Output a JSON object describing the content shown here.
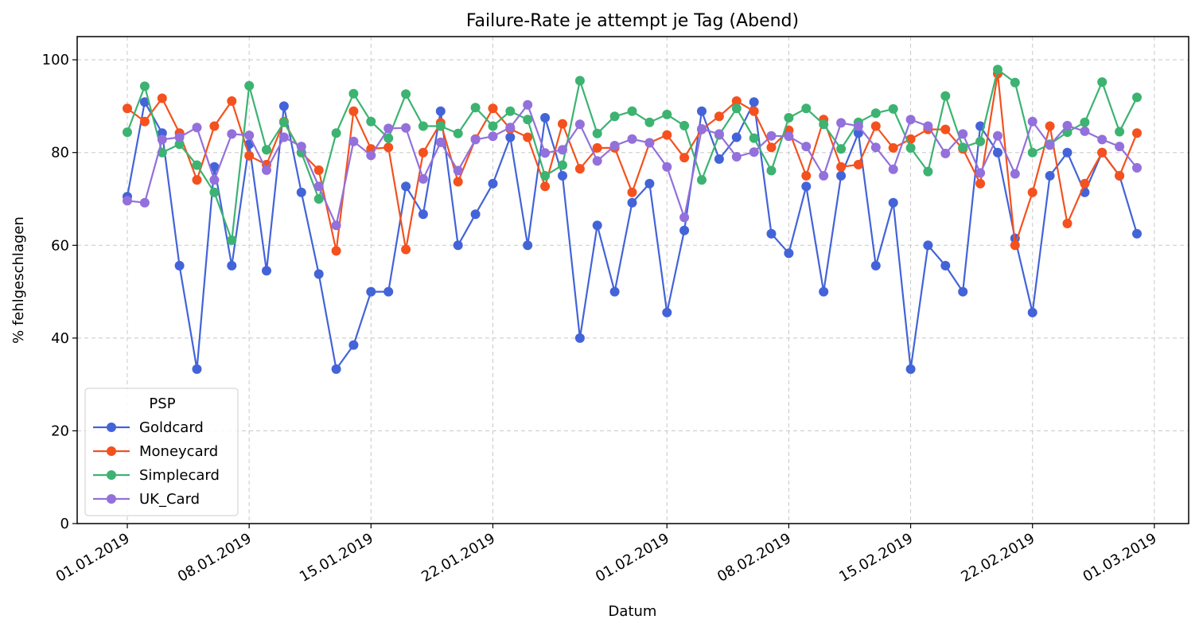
{
  "chart_data": {
    "type": "line",
    "title": "Failure-Rate je attempt je Tag (Abend)",
    "xlabel": "Datum",
    "ylabel": "% fehlgeschlagen",
    "ylim": [
      0,
      105
    ],
    "yticks": [
      0,
      20,
      40,
      60,
      80,
      100
    ],
    "xticks": [
      "01.01.2019",
      "08.01.2019",
      "15.01.2019",
      "22.01.2019",
      "01.02.2019",
      "08.02.2019",
      "15.02.2019",
      "22.02.2019",
      "01.03.2019"
    ],
    "grid": true,
    "legend": {
      "title": "PSP",
      "position": "lower-left"
    },
    "dates": [
      "01.01.2019",
      "02.01.2019",
      "03.01.2019",
      "04.01.2019",
      "05.01.2019",
      "06.01.2019",
      "07.01.2019",
      "08.01.2019",
      "09.01.2019",
      "10.01.2019",
      "11.01.2019",
      "12.01.2019",
      "13.01.2019",
      "14.01.2019",
      "15.01.2019",
      "16.01.2019",
      "17.01.2019",
      "18.01.2019",
      "19.01.2019",
      "20.01.2019",
      "21.01.2019",
      "22.01.2019",
      "23.01.2019",
      "24.01.2019",
      "25.01.2019",
      "26.01.2019",
      "27.01.2019",
      "28.01.2019",
      "29.01.2019",
      "30.01.2019",
      "31.01.2019",
      "01.02.2019",
      "02.02.2019",
      "03.02.2019",
      "04.02.2019",
      "05.02.2019",
      "06.02.2019",
      "07.02.2019",
      "08.02.2019",
      "09.02.2019",
      "10.02.2019",
      "11.02.2019",
      "12.02.2019",
      "13.02.2019",
      "14.02.2019",
      "15.02.2019",
      "16.02.2019",
      "17.02.2019",
      "18.02.2019",
      "19.02.2019",
      "20.02.2019",
      "21.02.2019",
      "22.02.2019",
      "23.02.2019",
      "24.02.2019",
      "25.02.2019",
      "26.02.2019",
      "27.02.2019",
      "28.02.2019"
    ],
    "series": [
      {
        "name": "Goldcard",
        "color": "#4363d8",
        "values": [
          70.5,
          90.9,
          84.2,
          55.6,
          33.3,
          76.9,
          55.6,
          81.8,
          54.5,
          90.0,
          71.4,
          53.8,
          33.3,
          38.5,
          50.0,
          50.0,
          72.7,
          66.7,
          88.9,
          60.0,
          66.7,
          73.3,
          83.3,
          60.0,
          87.5,
          75.0,
          40.0,
          64.3,
          50.0,
          69.2,
          73.3,
          45.5,
          63.2,
          88.9,
          78.6,
          83.3,
          90.9,
          62.5,
          58.3,
          72.7,
          50.0,
          75.0,
          84.2,
          55.6,
          69.2,
          33.3,
          60.0,
          55.6,
          50.0,
          85.7,
          80.0,
          61.5,
          45.5,
          75.0,
          80.0,
          71.4,
          80.0,
          75.0,
          62.5
        ]
      },
      {
        "name": "Moneycard",
        "color": "#f4511e",
        "values": [
          89.5,
          86.7,
          91.7,
          84.2,
          74.1,
          85.7,
          91.1,
          79.3,
          77.4,
          86.7,
          80.0,
          76.2,
          58.8,
          88.9,
          80.8,
          81.1,
          59.1,
          80.0,
          86.4,
          73.7,
          82.9,
          89.5,
          85.1,
          83.3,
          72.7,
          86.2,
          76.5,
          81.0,
          81.0,
          71.4,
          82.1,
          83.8,
          78.9,
          85.0,
          87.8,
          91.1,
          88.9,
          81.1,
          84.8,
          75.0,
          87.1,
          76.9,
          77.4,
          85.7,
          81.0,
          82.9,
          85.0,
          85.0,
          80.8,
          73.3,
          97.0,
          60.0,
          71.4,
          85.7,
          64.7,
          73.3,
          80.0,
          75.0,
          84.2
        ]
      },
      {
        "name": "Simplecard",
        "color": "#3cb371",
        "values": [
          84.4,
          94.3,
          80.0,
          81.8,
          77.3,
          71.4,
          61.1,
          94.4,
          80.6,
          86.5,
          80.0,
          70.0,
          84.2,
          92.7,
          86.7,
          83.1,
          92.6,
          85.7,
          85.7,
          84.1,
          89.7,
          85.7,
          88.9,
          87.1,
          75.0,
          77.3,
          95.5,
          84.1,
          87.8,
          88.9,
          86.5,
          88.2,
          85.8,
          74.1,
          83.8,
          89.5,
          83.1,
          76.1,
          87.5,
          89.5,
          86.1,
          80.8,
          86.5,
          88.5,
          89.4,
          81.0,
          75.9,
          92.2,
          81.1,
          82.4,
          97.9,
          95.1,
          80.0,
          81.8,
          84.4,
          86.5,
          95.2,
          84.5,
          91.9
        ]
      },
      {
        "name": "UK_Card",
        "color": "#9370db",
        "values": [
          69.6,
          69.2,
          82.8,
          83.3,
          85.4,
          74.1,
          84.0,
          83.7,
          76.2,
          83.3,
          81.3,
          72.7,
          64.3,
          82.4,
          79.4,
          85.2,
          85.3,
          74.3,
          82.2,
          76.1,
          82.8,
          83.5,
          85.4,
          90.3,
          79.9,
          80.6,
          86.1,
          78.2,
          81.5,
          82.9,
          82.1,
          76.9,
          66.0,
          85.1,
          84.0,
          79.1,
          80.1,
          83.6,
          83.5,
          81.3,
          75.0,
          86.4,
          85.7,
          81.1,
          76.4,
          87.1,
          85.7,
          79.8,
          84.0,
          75.6,
          83.6,
          75.4,
          86.7,
          81.6,
          85.8,
          84.6,
          82.8,
          81.3,
          76.7
        ]
      }
    ]
  }
}
